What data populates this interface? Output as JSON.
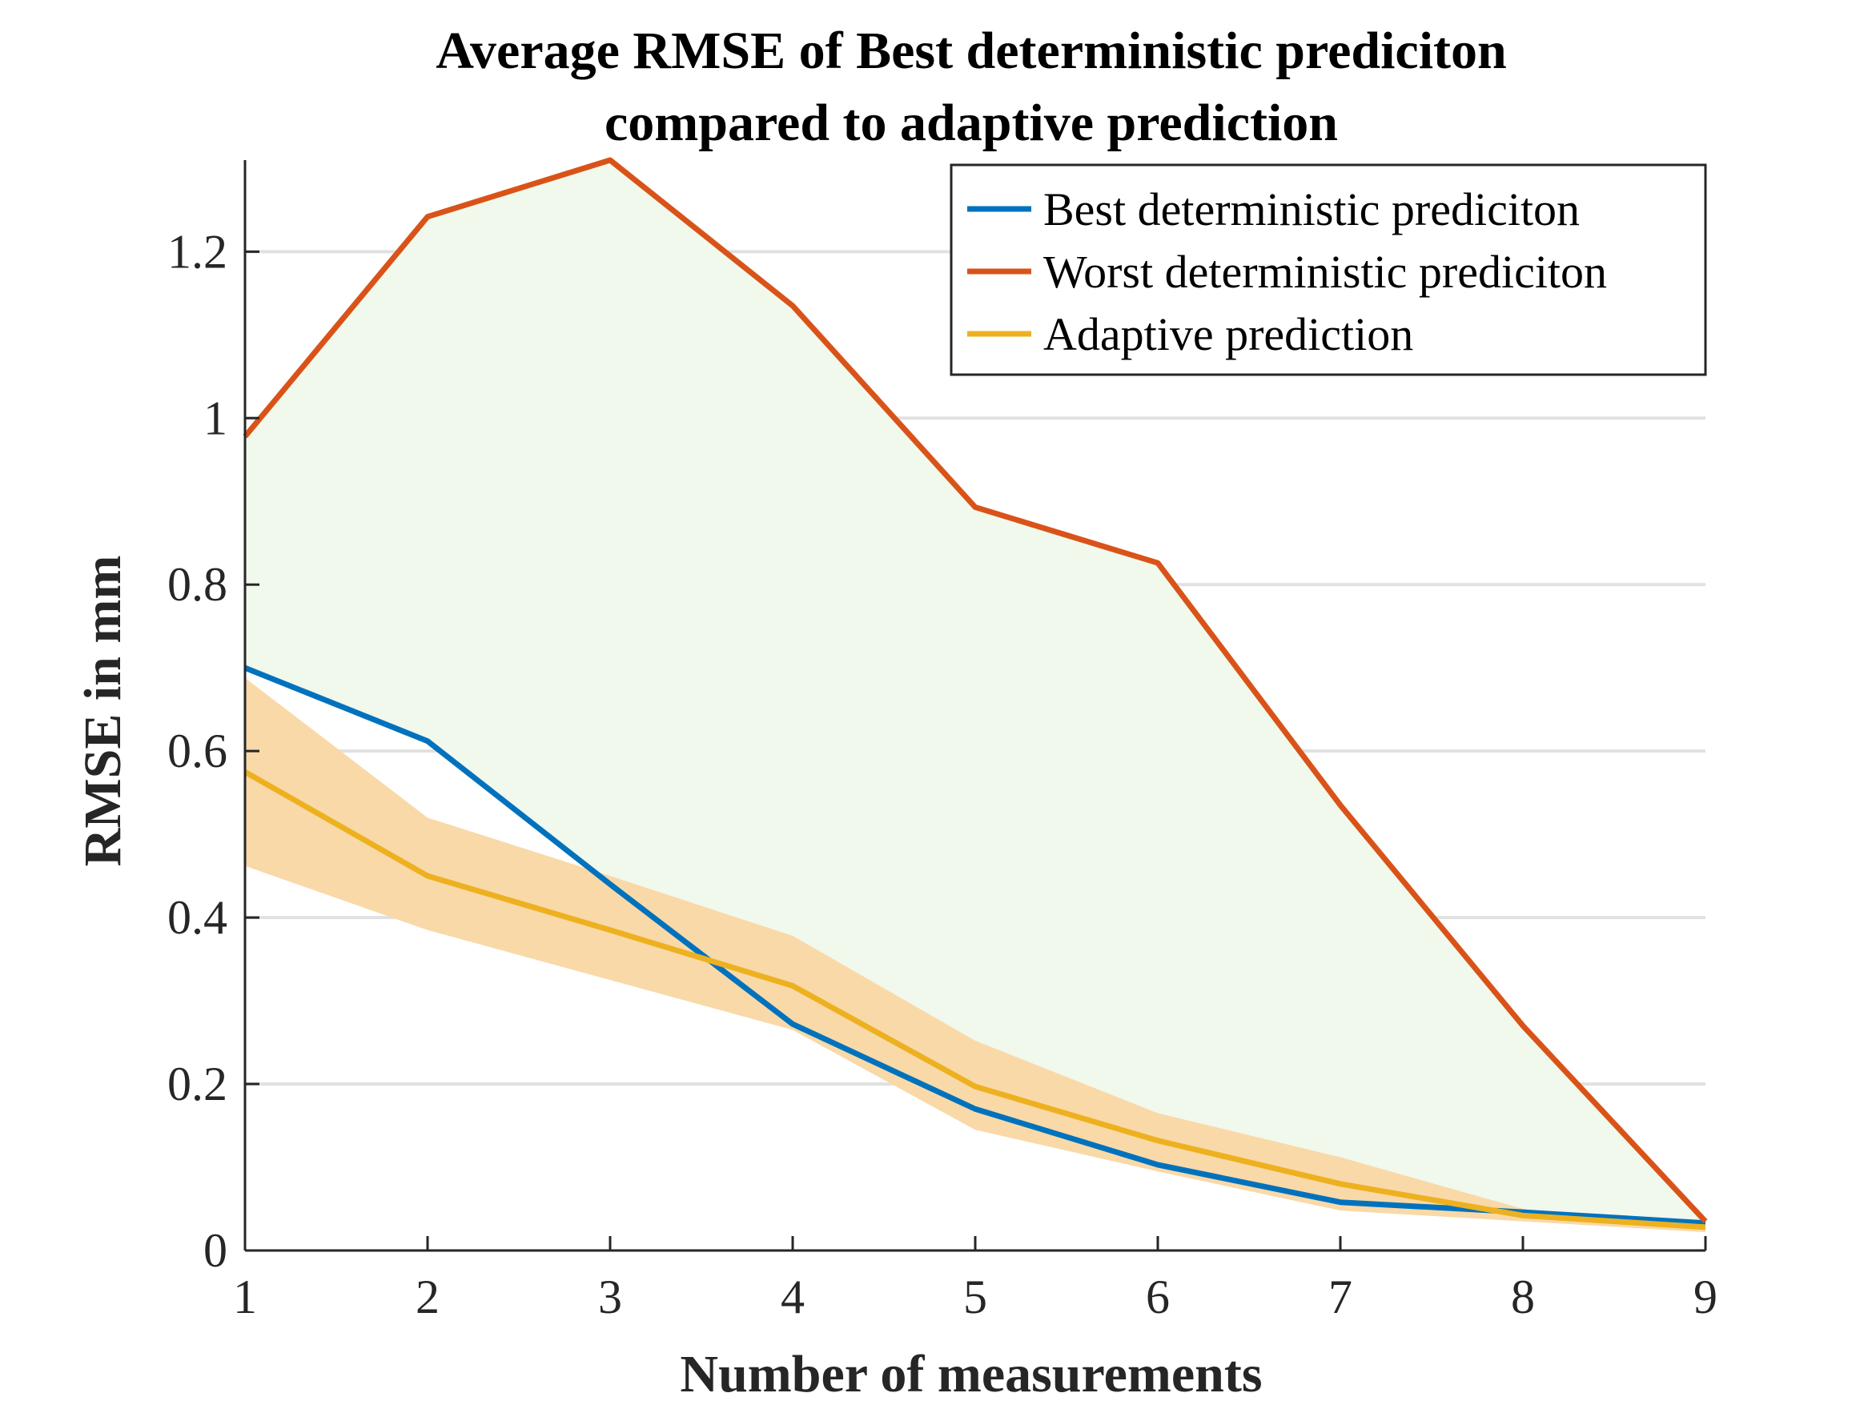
{
  "chart_data": {
    "type": "line",
    "title_lines": [
      "Average RMSE of Best deterministic prediciton",
      "compared to adaptive prediction"
    ],
    "xlabel": "Number of measurements",
    "ylabel": "RMSE in mm",
    "x": [
      1,
      2,
      3,
      4,
      5,
      6,
      7,
      8,
      9
    ],
    "xlim": [
      1,
      9
    ],
    "ylim": [
      0,
      1.31
    ],
    "xticks": [
      1,
      2,
      3,
      4,
      5,
      6,
      7,
      8,
      9
    ],
    "yticks": [
      0,
      0.2,
      0.4,
      0.6,
      0.8,
      1,
      1.2
    ],
    "ytick_labels": [
      "0",
      "0.2",
      "0.4",
      "0.6",
      "0.8",
      "1",
      "1.2"
    ],
    "grid": "horizontal",
    "legend_position": "top-right",
    "series": [
      {
        "name": "Best deterministic prediciton",
        "color": "#0072BD",
        "values": [
          0.7,
          0.612,
          0.44,
          0.272,
          0.17,
          0.103,
          0.058,
          0.046,
          0.033
        ]
      },
      {
        "name": "Worst deterministic prediciton",
        "color": "#D95319",
        "values": [
          0.978,
          1.242,
          1.31,
          1.135,
          0.893,
          0.826,
          0.535,
          0.27,
          0.035
        ]
      },
      {
        "name": "Adaptive prediction",
        "color": "#EDB120",
        "values": [
          0.575,
          0.45,
          0.385,
          0.318,
          0.197,
          0.132,
          0.08,
          0.042,
          0.028
        ]
      }
    ],
    "bands": [
      {
        "color": "#F1F8EC",
        "lower": [
          0.7,
          0.612,
          0.44,
          0.272,
          0.17,
          0.103,
          0.058,
          0.046,
          0.033
        ],
        "upper": [
          0.978,
          1.242,
          1.31,
          1.135,
          0.893,
          0.826,
          0.535,
          0.27,
          0.035
        ]
      },
      {
        "color": "#F9D9A8",
        "lower": [
          0.462,
          0.385,
          0.325,
          0.265,
          0.145,
          0.095,
          0.048,
          0.035,
          0.022
        ],
        "upper": [
          0.688,
          0.52,
          0.45,
          0.378,
          0.252,
          0.165,
          0.112,
          0.05,
          0.032
        ]
      }
    ]
  }
}
